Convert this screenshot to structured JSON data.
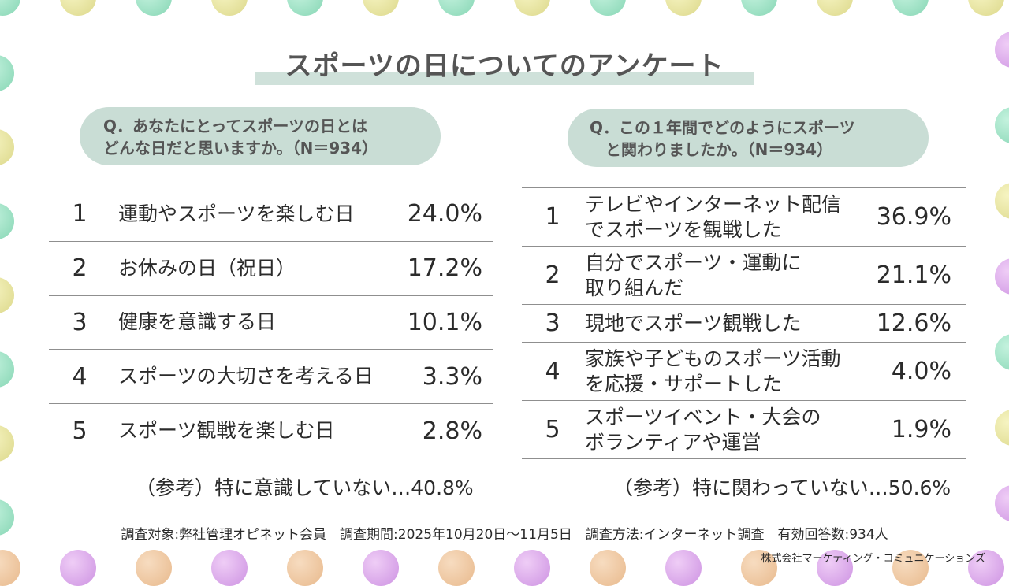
{
  "title": "スポーツの日についてのアンケート",
  "left": {
    "question": "Q．あなたにとってスポーツの日とは\nどんな日だと思いますか。（N＝934）",
    "rows": [
      {
        "rank": "1",
        "label": "運動やスポーツを楽しむ日",
        "pct": "24.0%"
      },
      {
        "rank": "2",
        "label": "お休みの日（祝日）",
        "pct": "17.2%"
      },
      {
        "rank": "3",
        "label": "健康を意識する日",
        "pct": "10.1%"
      },
      {
        "rank": "4",
        "label": "スポーツの大切さを考える日",
        "pct": "3.3%"
      },
      {
        "rank": "5",
        "label": "スポーツ観戦を楽しむ日",
        "pct": "2.8%"
      }
    ],
    "reference": "（参考）特に意識していない…40.8%"
  },
  "right": {
    "question": "Q．この１年間でどのようにスポーツ\n　と関わりましたか。（N＝934）",
    "rows": [
      {
        "rank": "1",
        "label": "テレビやインターネット配信\nでスポーツを観戦した",
        "pct": "36.9%"
      },
      {
        "rank": "2",
        "label": "自分でスポーツ・運動に\n取り組んだ",
        "pct": "21.1%"
      },
      {
        "rank": "3",
        "label": "現地でスポーツ観戦した",
        "pct": "12.6%"
      },
      {
        "rank": "4",
        "label": "家族や子どものスポーツ活動\nを応援・サポートした",
        "pct": "4.0%"
      },
      {
        "rank": "5",
        "label": "スポーツイベント・大会の\nボランティアや運営",
        "pct": "1.9%"
      }
    ],
    "reference": "（参考）特に関わっていない…50.6%"
  },
  "footer": "調査対象:弊社管理オピネット会員　調査期間:2025年10月20日〜11月5日　調査方法:インターネット調査　有効回答数:934人",
  "company": "株式会社マーケティング・コミュニケーションズ",
  "colors": {
    "accent_band": "#cfe1da",
    "pill": "#c9ddd5",
    "title_text": "#555555",
    "dot_mint": "#86d6b4",
    "dot_yellow": "#dcd88a",
    "dot_purple": "#cd92e2",
    "dot_peach": "#e8b98c"
  }
}
